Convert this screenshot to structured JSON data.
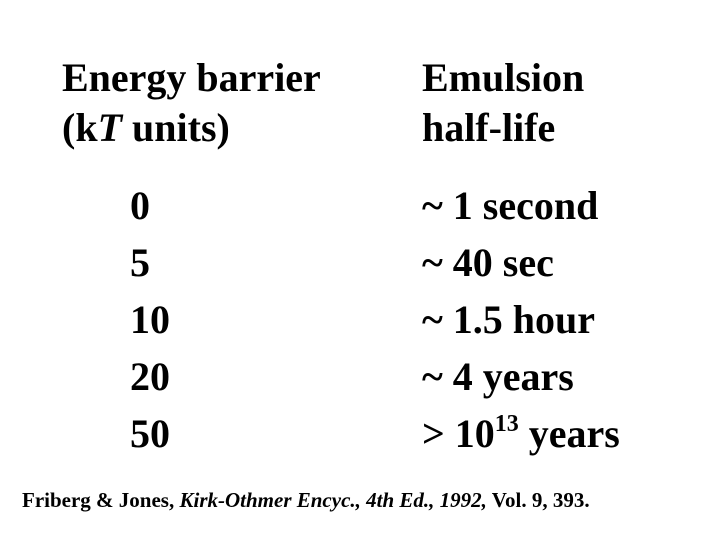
{
  "header": {
    "barrier": {
      "line1": "Energy barrier",
      "line2": {
        "open": "(k",
        "italic": "T",
        "close": " units)"
      }
    },
    "half_life": {
      "line1": "Emulsion",
      "line2": "half-life"
    }
  },
  "table": {
    "rows": [
      [
        0,
        "~ 1 second"
      ],
      [
        5,
        "~ 40 sec"
      ],
      [
        10,
        "~ 1.5 hour"
      ],
      [
        20,
        "~ 4 years"
      ],
      [
        50,
        {
          "base": "> 10",
          "sup": "13",
          "unit": " years"
        }
      ]
    ]
  },
  "footer": {
    "authors": "Friberg & Jones, ",
    "source": "Kirk-Othmer Encyc., 4th Ed., 1992,",
    "volume": " Vol. 9, 393."
  }
}
